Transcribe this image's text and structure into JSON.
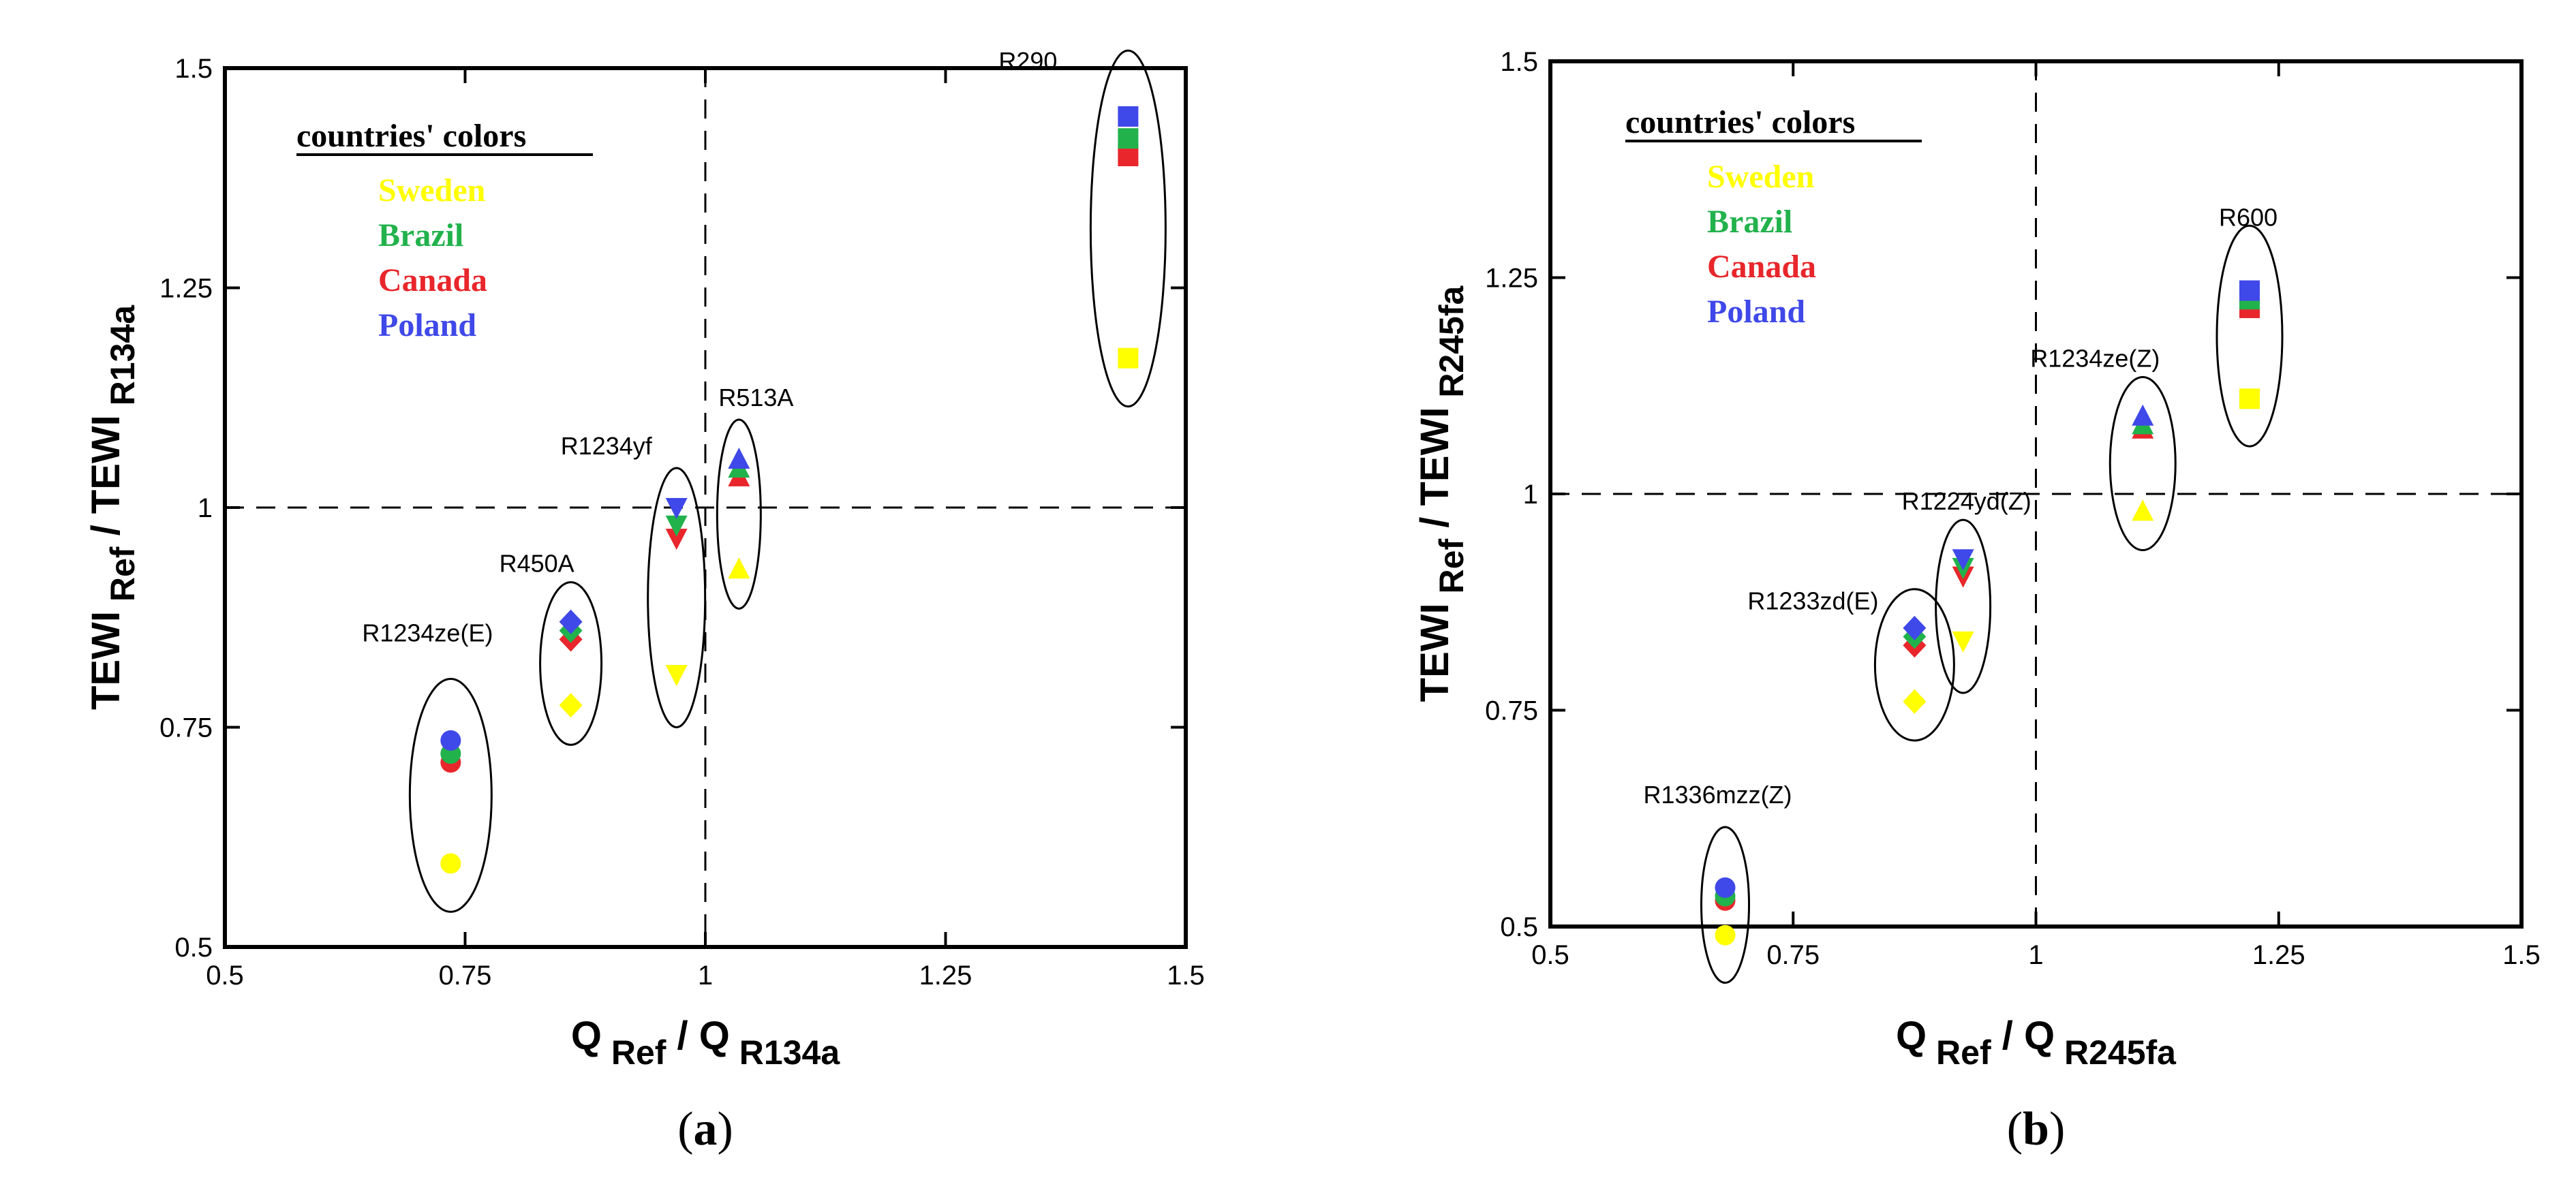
{
  "colors": {
    "sweden": "#ffff00",
    "brazil": "#22b24c",
    "canada": "#e8262b",
    "poland": "#3f48e8"
  },
  "chart_data": [
    {
      "type": "scatter",
      "panel_label": "(a)",
      "caption_letter": "a",
      "xlim": [
        0.5,
        1.5
      ],
      "ylim": [
        0.5,
        1.5
      ],
      "xticks": [
        "0.5",
        "0.75",
        "1",
        "1.25",
        "1.5"
      ],
      "yticks": [
        "0.5",
        "0.75",
        "1",
        "1.25",
        "1.5"
      ],
      "xlabel": {
        "main": "Q",
        "sub1": "Ref",
        "sep": "/",
        "main2": "Q",
        "sub2": "R134a"
      },
      "ylabel": {
        "main": "TEWI",
        "sub1": "Ref",
        "sep": "/",
        "main2": "TEWI",
        "sub2": "R134a"
      },
      "reference_lines": {
        "x": 1,
        "y": 1
      },
      "legend": {
        "title": "countries' colors",
        "entries": [
          "Sweden",
          "Brazil",
          "Canada",
          "Poland"
        ]
      },
      "groups": [
        {
          "name": "R1234ze(E)",
          "marker": "circle",
          "x": 0.735,
          "values": {
            "Sweden": 0.595,
            "Brazil": 0.72,
            "Canada": 0.71,
            "Poland": 0.735
          }
        },
        {
          "name": "R450A",
          "marker": "diamond",
          "x": 0.86,
          "values": {
            "Sweden": 0.775,
            "Brazil": 0.86,
            "Canada": 0.85,
            "Poland": 0.87
          }
        },
        {
          "name": "R1234yf",
          "marker": "triangle-down",
          "x": 0.97,
          "values": {
            "Sweden": 0.81,
            "Brazil": 0.98,
            "Canada": 0.965,
            "Poland": 1.0
          }
        },
        {
          "name": "R513A",
          "marker": "triangle-up",
          "x": 1.035,
          "values": {
            "Sweden": 0.93,
            "Brazil": 1.045,
            "Canada": 1.035,
            "Poland": 1.055
          }
        },
        {
          "name": "R290",
          "marker": "square",
          "x": 1.44,
          "values": {
            "Sweden": 1.17,
            "Brazil": 1.42,
            "Canada": 1.4,
            "Poland": 1.445
          }
        }
      ]
    },
    {
      "type": "scatter",
      "panel_label": "(b)",
      "caption_letter": "b",
      "xlim": [
        0.5,
        1.5
      ],
      "ylim": [
        0.5,
        1.5
      ],
      "xticks": [
        "0.5",
        "0.75",
        "1",
        "1.25",
        "1.5"
      ],
      "yticks": [
        "0.5",
        "0.75",
        "1",
        "1.25",
        "1.5"
      ],
      "xlabel": {
        "main": "Q",
        "sub1": "Ref",
        "sep": "/",
        "main2": "Q",
        "sub2": "R245fa"
      },
      "ylabel": {
        "main": "TEWI",
        "sub1": "Ref",
        "sep": "/",
        "main2": "TEWI",
        "sub2": "R245fa"
      },
      "reference_lines": {
        "x": 1,
        "y": 1
      },
      "legend": {
        "title": "countries' colors",
        "entries": [
          "Sweden",
          "Brazil",
          "Canada",
          "Poland"
        ]
      },
      "groups": [
        {
          "name": "R1336mzz(Z)",
          "marker": "circle",
          "x": 0.68,
          "values": {
            "Sweden": 0.49,
            "Brazil": 0.535,
            "Canada": 0.53,
            "Poland": 0.545
          }
        },
        {
          "name": "R1233zd(E)",
          "marker": "diamond",
          "x": 0.875,
          "values": {
            "Sweden": 0.76,
            "Brazil": 0.835,
            "Canada": 0.825,
            "Poland": 0.845
          }
        },
        {
          "name": "R1224yd(Z)",
          "marker": "triangle-down",
          "x": 0.925,
          "values": {
            "Sweden": 0.83,
            "Brazil": 0.915,
            "Canada": 0.905,
            "Poland": 0.925
          }
        },
        {
          "name": "R1234ze(Z)",
          "marker": "triangle-up",
          "x": 1.11,
          "values": {
            "Sweden": 0.98,
            "Brazil": 1.08,
            "Canada": 1.075,
            "Poland": 1.09
          }
        },
        {
          "name": "R600",
          "marker": "square",
          "x": 1.22,
          "values": {
            "Sweden": 1.11,
            "Brazil": 1.225,
            "Canada": 1.215,
            "Poland": 1.235
          }
        }
      ]
    }
  ]
}
